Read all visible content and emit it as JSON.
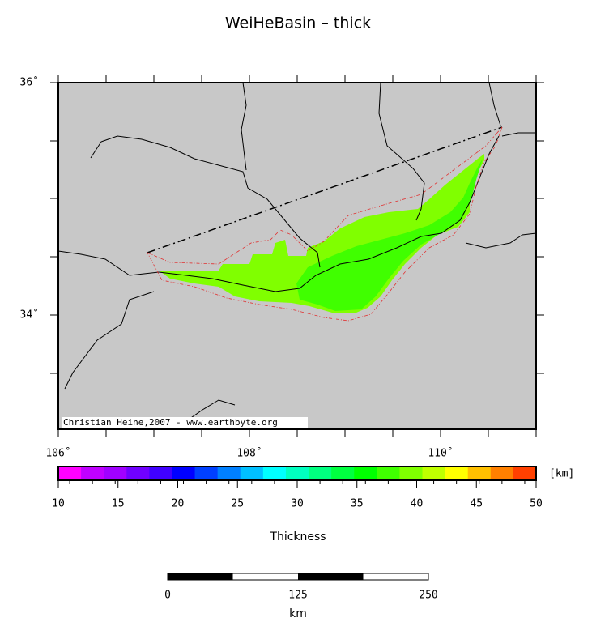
{
  "title": "WeiHeBasin – thick",
  "map": {
    "lat_labels": [
      "36˚",
      "34˚"
    ],
    "lon_labels": [
      "106˚",
      "108˚",
      "110˚"
    ],
    "credit": "Christian Heine,2007 - www.earthbyte.org"
  },
  "colorbar": {
    "ticks": [
      "10",
      "15",
      "20",
      "25",
      "30",
      "35",
      "40",
      "45",
      "50"
    ],
    "unit": "[km]",
    "label": "Thickness",
    "colors": [
      "#ff00ff",
      "#c000ff",
      "#a000ff",
      "#7000ff",
      "#4000ff",
      "#0000ff",
      "#0040ff",
      "#0080ff",
      "#00c0ff",
      "#00ffff",
      "#00ffc0",
      "#00ff80",
      "#00ff40",
      "#00ff00",
      "#40ff00",
      "#80ff00",
      "#c0ff00",
      "#ffff00",
      "#ffc000",
      "#ff8000",
      "#ff4000"
    ]
  },
  "scalebar": {
    "ticks": [
      "0",
      "125",
      "250"
    ],
    "unit": "km"
  }
}
